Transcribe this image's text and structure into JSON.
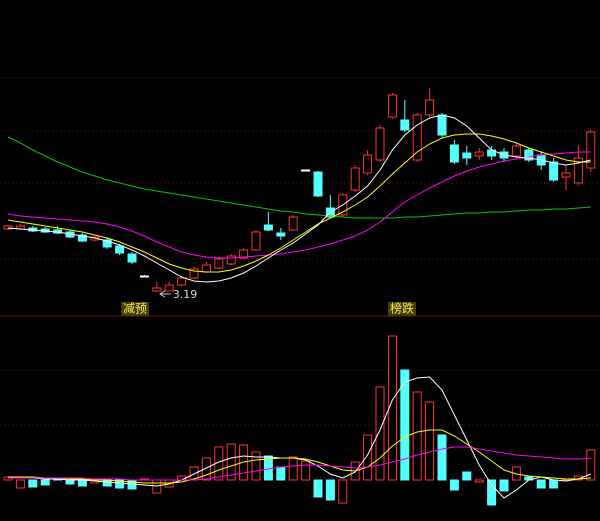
{
  "chart_data": [
    {
      "type": "candlestick",
      "categories": [
        null,
        null,
        null,
        null,
        null,
        null,
        null,
        null,
        null,
        null,
        null,
        null,
        null,
        null,
        null,
        null,
        null,
        null,
        null,
        null,
        null,
        null,
        null,
        null,
        null,
        null,
        null,
        null,
        null,
        null,
        null,
        null,
        null,
        null,
        null,
        null,
        null,
        null,
        null,
        null,
        null,
        null,
        null,
        null,
        null,
        null,
        null,
        null
      ],
      "open": [
        3.82,
        3.82,
        3.83,
        3.82,
        3.81,
        3.79,
        3.76,
        3.71,
        3.71,
        3.65,
        3.57,
        3.35,
        3.2,
        3.2,
        3.26,
        3.33,
        3.39,
        3.43,
        3.47,
        3.53,
        3.61,
        3.86,
        3.78,
        3.81,
        4.41,
        4.39,
        4.03,
        3.96,
        4.21,
        4.38,
        4.51,
        4.94,
        4.91,
        4.51,
        4.96,
        4.96,
        4.66,
        4.58,
        4.55,
        4.61,
        4.59,
        4.55,
        4.61,
        4.56,
        4.49,
        4.34,
        4.28,
        4.43
      ],
      "close": [
        3.85,
        3.85,
        3.8,
        3.79,
        3.78,
        3.74,
        3.7,
        3.74,
        3.64,
        3.58,
        3.49,
        3.35,
        3.23,
        3.26,
        3.33,
        3.42,
        3.46,
        3.52,
        3.55,
        3.61,
        3.79,
        3.81,
        3.75,
        3.94,
        4.41,
        4.15,
        3.94,
        4.16,
        4.43,
        4.56,
        4.83,
        5.16,
        4.81,
        4.96,
        5.11,
        4.76,
        4.49,
        4.53,
        4.59,
        4.55,
        4.53,
        4.65,
        4.51,
        4.46,
        4.31,
        4.38,
        4.53,
        4.79
      ],
      "high": [
        3.86,
        3.87,
        3.85,
        3.84,
        3.85,
        3.81,
        3.78,
        3.75,
        3.73,
        3.67,
        3.59,
        3.36,
        3.29,
        3.29,
        3.35,
        3.44,
        3.49,
        3.54,
        3.57,
        3.63,
        3.81,
        3.99,
        3.83,
        3.96,
        4.41,
        4.4,
        4.16,
        4.18,
        4.46,
        4.61,
        4.86,
        5.18,
        5.11,
        4.98,
        5.23,
        4.98,
        4.71,
        4.65,
        4.63,
        4.65,
        4.63,
        4.67,
        4.63,
        4.59,
        4.53,
        4.46,
        4.66,
        4.81
      ],
      "low": [
        3.81,
        3.81,
        3.79,
        3.78,
        3.77,
        3.73,
        3.69,
        3.7,
        3.62,
        3.56,
        3.47,
        3.34,
        3.19,
        3.2,
        3.25,
        3.32,
        3.38,
        3.42,
        3.46,
        3.52,
        3.6,
        3.8,
        3.71,
        3.8,
        4.41,
        4.14,
        3.93,
        3.94,
        4.19,
        4.36,
        4.49,
        4.92,
        4.79,
        4.49,
        4.94,
        4.74,
        4.47,
        4.46,
        4.51,
        4.51,
        4.49,
        4.53,
        4.49,
        4.41,
        4.29,
        4.21,
        4.26,
        4.39
      ],
      "up_color": "#ff3232",
      "down_color": "#54ffff",
      "doji_color": "#ffffff",
      "ylim": [
        2.96,
        6.11
      ],
      "series": [
        {
          "color": "#00c800",
          "values": [
            4.74,
            4.68,
            4.61,
            4.55,
            4.49,
            4.44,
            4.39,
            4.35,
            4.31,
            4.28,
            4.25,
            4.22,
            4.2,
            4.18,
            4.16,
            4.14,
            4.12,
            4.1,
            4.08,
            4.06,
            4.04,
            4.02,
            4.0,
            3.99,
            3.97,
            3.96,
            3.95,
            3.94,
            3.93,
            3.93,
            3.93,
            3.93,
            3.94,
            3.94,
            3.95,
            3.96,
            3.97,
            3.98,
            3.98,
            3.99,
            3.99,
            4.0,
            4.01,
            4.01,
            4.02,
            4.02,
            4.03,
            4.04
          ]
        },
        {
          "color": "#ff00ff",
          "values": [
            3.97,
            3.95,
            3.94,
            3.93,
            3.92,
            3.91,
            3.9,
            3.89,
            3.87,
            3.84,
            3.8,
            3.75,
            3.69,
            3.64,
            3.59,
            3.56,
            3.54,
            3.53,
            3.53,
            3.54,
            3.55,
            3.56,
            3.57,
            3.59,
            3.61,
            3.64,
            3.67,
            3.71,
            3.75,
            3.81,
            3.89,
            3.99,
            4.09,
            4.16,
            4.23,
            4.29,
            4.35,
            4.4,
            4.44,
            4.47,
            4.5,
            4.52,
            4.54,
            4.56,
            4.57,
            4.58,
            4.59,
            4.59
          ]
        },
        {
          "color": "#ffff00",
          "values": [
            3.91,
            3.89,
            3.87,
            3.85,
            3.83,
            3.81,
            3.79,
            3.76,
            3.73,
            3.69,
            3.64,
            3.59,
            3.53,
            3.47,
            3.43,
            3.4,
            3.39,
            3.39,
            3.41,
            3.45,
            3.5,
            3.56,
            3.63,
            3.71,
            3.79,
            3.87,
            3.93,
            3.99,
            4.06,
            4.14,
            4.25,
            4.37,
            4.48,
            4.59,
            4.67,
            4.73,
            4.76,
            4.77,
            4.77,
            4.75,
            4.72,
            4.68,
            4.63,
            4.59,
            4.55,
            4.51,
            4.49,
            4.49
          ]
        },
        {
          "color": "#ffffff",
          "values": [
            3.83,
            3.82,
            3.81,
            3.8,
            3.79,
            3.77,
            3.75,
            3.73,
            3.7,
            3.66,
            3.61,
            3.55,
            3.48,
            3.41,
            3.34,
            3.3,
            3.29,
            3.3,
            3.33,
            3.38,
            3.45,
            3.53,
            3.61,
            3.68,
            3.77,
            3.86,
            3.99,
            4.06,
            4.15,
            4.25,
            4.41,
            4.61,
            4.76,
            4.86,
            4.93,
            4.96,
            4.93,
            4.85,
            4.73,
            4.61,
            4.56,
            4.54,
            4.53,
            4.51,
            4.48,
            4.46,
            4.48,
            4.51
          ]
        }
      ],
      "low_label": 3.19,
      "signals": [
        "减预",
        "榜跌"
      ]
    },
    {
      "type": "bar",
      "categories": [
        null,
        null,
        null,
        null,
        null,
        null,
        null,
        null,
        null,
        null,
        null,
        null,
        null,
        null,
        null,
        null,
        null,
        null,
        null,
        null,
        null,
        null,
        null,
        null,
        null,
        null,
        null,
        null,
        null,
        null,
        null,
        null,
        null,
        null,
        null,
        null,
        null,
        null,
        null,
        null,
        null,
        null,
        null,
        null,
        null,
        null,
        null,
        null
      ],
      "values": [
        0.3,
        -0.8,
        -0.7,
        -0.5,
        0.1,
        -0.4,
        -0.6,
        -0.3,
        -0.6,
        -0.8,
        -0.9,
        0.1,
        -1.3,
        -0.7,
        0.4,
        1.3,
        2.2,
        3.3,
        3.6,
        3.5,
        2.8,
        2.4,
        1.3,
        2.3,
        1.9,
        -1.7,
        -2.0,
        -2.3,
        1.8,
        4.5,
        9.3,
        14.4,
        11.0,
        8.8,
        7.8,
        4.5,
        -1.0,
        0.8,
        -0.2,
        -2.5,
        -1.1,
        1.3,
        0.3,
        -0.8,
        -0.8,
        0.1,
        0.4,
        3.0
      ],
      "colors": [
        "#ff3232",
        "#ff3232",
        "#54ffff",
        "#54ffff",
        "#54ffff",
        "#54ffff",
        "#54ffff",
        "#ff3232",
        "#54ffff",
        "#54ffff",
        "#54ffff",
        "#ff3232",
        "#ff3232",
        "#ff3232",
        "#ff3232",
        "#ff3232",
        "#ff3232",
        "#ff3232",
        "#ff3232",
        "#ff3232",
        "#ff3232",
        "#54ffff",
        "#54ffff",
        "#ff3232",
        "#ff3232",
        "#54ffff",
        "#54ffff",
        "#ff3232",
        "#ff3232",
        "#ff3232",
        "#ff3232",
        "#ff3232",
        "#54ffff",
        "#ff3232",
        "#ff3232",
        "#54ffff",
        "#54ffff",
        "#54ffff",
        "#ff3232",
        "#54ffff",
        "#54ffff",
        "#ff3232",
        "#54ffff",
        "#54ffff",
        "#54ffff",
        "#ff3232",
        "#ff3232",
        "#ff3232"
      ],
      "ylim": [
        -4.1,
        16.4
      ],
      "series": [
        {
          "color": "#ffffff",
          "values": [
            0.3,
            0.2,
            0.2,
            0.1,
            0.1,
            0.0,
            0.0,
            -0.1,
            -0.2,
            -0.3,
            -0.4,
            -0.5,
            -0.6,
            -0.4,
            0.0,
            0.6,
            1.2,
            1.8,
            2.2,
            2.4,
            2.3,
            2.3,
            2.2,
            2.2,
            2.0,
            1.4,
            0.6,
            0.2,
            0.8,
            2.5,
            5.0,
            8.0,
            9.8,
            10.2,
            10.3,
            9.0,
            6.5,
            4.0,
            1.5,
            -0.5,
            -1.8,
            -1.0,
            0.0,
            0.3,
            0.0,
            -0.1,
            0.1,
            0.6
          ]
        },
        {
          "color": "#ffff00",
          "values": [
            0.3,
            0.3,
            0.3,
            0.2,
            0.2,
            0.1,
            0.1,
            0.0,
            0.0,
            -0.1,
            -0.2,
            -0.3,
            -0.3,
            -0.3,
            -0.2,
            0.1,
            0.5,
            1.0,
            1.4,
            1.8,
            2.0,
            2.1,
            2.2,
            2.2,
            2.1,
            1.8,
            1.4,
            1.0,
            0.9,
            1.3,
            2.2,
            3.4,
            4.3,
            4.8,
            5.0,
            5.0,
            4.4,
            3.6,
            2.8,
            1.9,
            1.0,
            0.6,
            0.4,
            0.3,
            0.2,
            0.1,
            0.1,
            0.2
          ]
        },
        {
          "color": "#ff00ff",
          "values": [
            0.2,
            0.2,
            0.2,
            0.2,
            0.2,
            0.2,
            0.2,
            0.1,
            0.1,
            0.1,
            0.0,
            0.0,
            0.0,
            0.0,
            0.0,
            0.0,
            0.1,
            0.3,
            0.5,
            0.7,
            0.9,
            1.1,
            1.3,
            1.4,
            1.5,
            1.5,
            1.4,
            1.3,
            1.2,
            1.3,
            1.5,
            1.8,
            2.1,
            2.5,
            2.8,
            3.1,
            3.3,
            3.3,
            3.1,
            2.9,
            2.7,
            2.5,
            2.4,
            2.3,
            2.2,
            2.1,
            2.1,
            2.2
          ]
        }
      ]
    }
  ]
}
